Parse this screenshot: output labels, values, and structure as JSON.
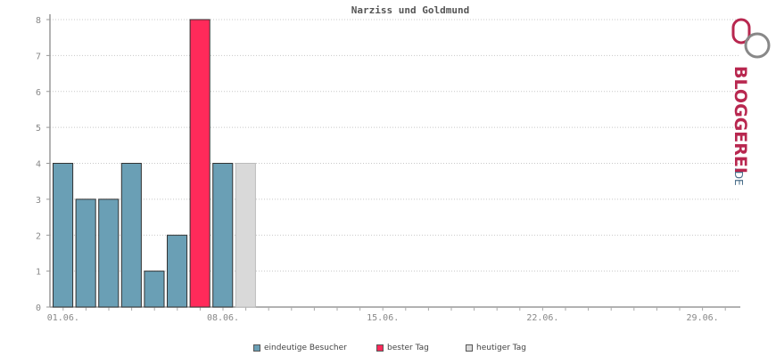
{
  "chart_data": {
    "type": "bar",
    "title": "Narziss und Goldmund",
    "xlabel": "",
    "ylabel": "",
    "ylim": [
      0,
      8
    ],
    "yticks": [
      "0",
      "1",
      "2",
      "3",
      "4",
      "5",
      "6",
      "7",
      "8"
    ],
    "x_tick_labels": [
      "01.06.",
      "08.06.",
      "15.06.",
      "22.06.",
      "29.06."
    ],
    "days": 30,
    "series": [
      {
        "name": "eindeutige Besucher",
        "color": "#6a9fb5",
        "points": [
          {
            "day": 1,
            "value": 4
          },
          {
            "day": 2,
            "value": 3
          },
          {
            "day": 3,
            "value": 3
          },
          {
            "day": 4,
            "value": 4
          },
          {
            "day": 5,
            "value": 1
          },
          {
            "day": 6,
            "value": 2
          },
          {
            "day": 8,
            "value": 4
          }
        ]
      },
      {
        "name": "bester Tag",
        "color": "#ff2a5a",
        "points": [
          {
            "day": 7,
            "value": 8
          }
        ]
      },
      {
        "name": "heutiger Tag",
        "color": "#d9d9d9",
        "points": [
          {
            "day": 9,
            "value": 4
          }
        ]
      }
    ],
    "grid": true,
    "legend_position": "bottom"
  },
  "logo": {
    "text_main": "BLOGGEREI",
    "text_suffix": ".DE",
    "color_main": "#b8274f",
    "color_suffix": "#4b6f8a"
  }
}
